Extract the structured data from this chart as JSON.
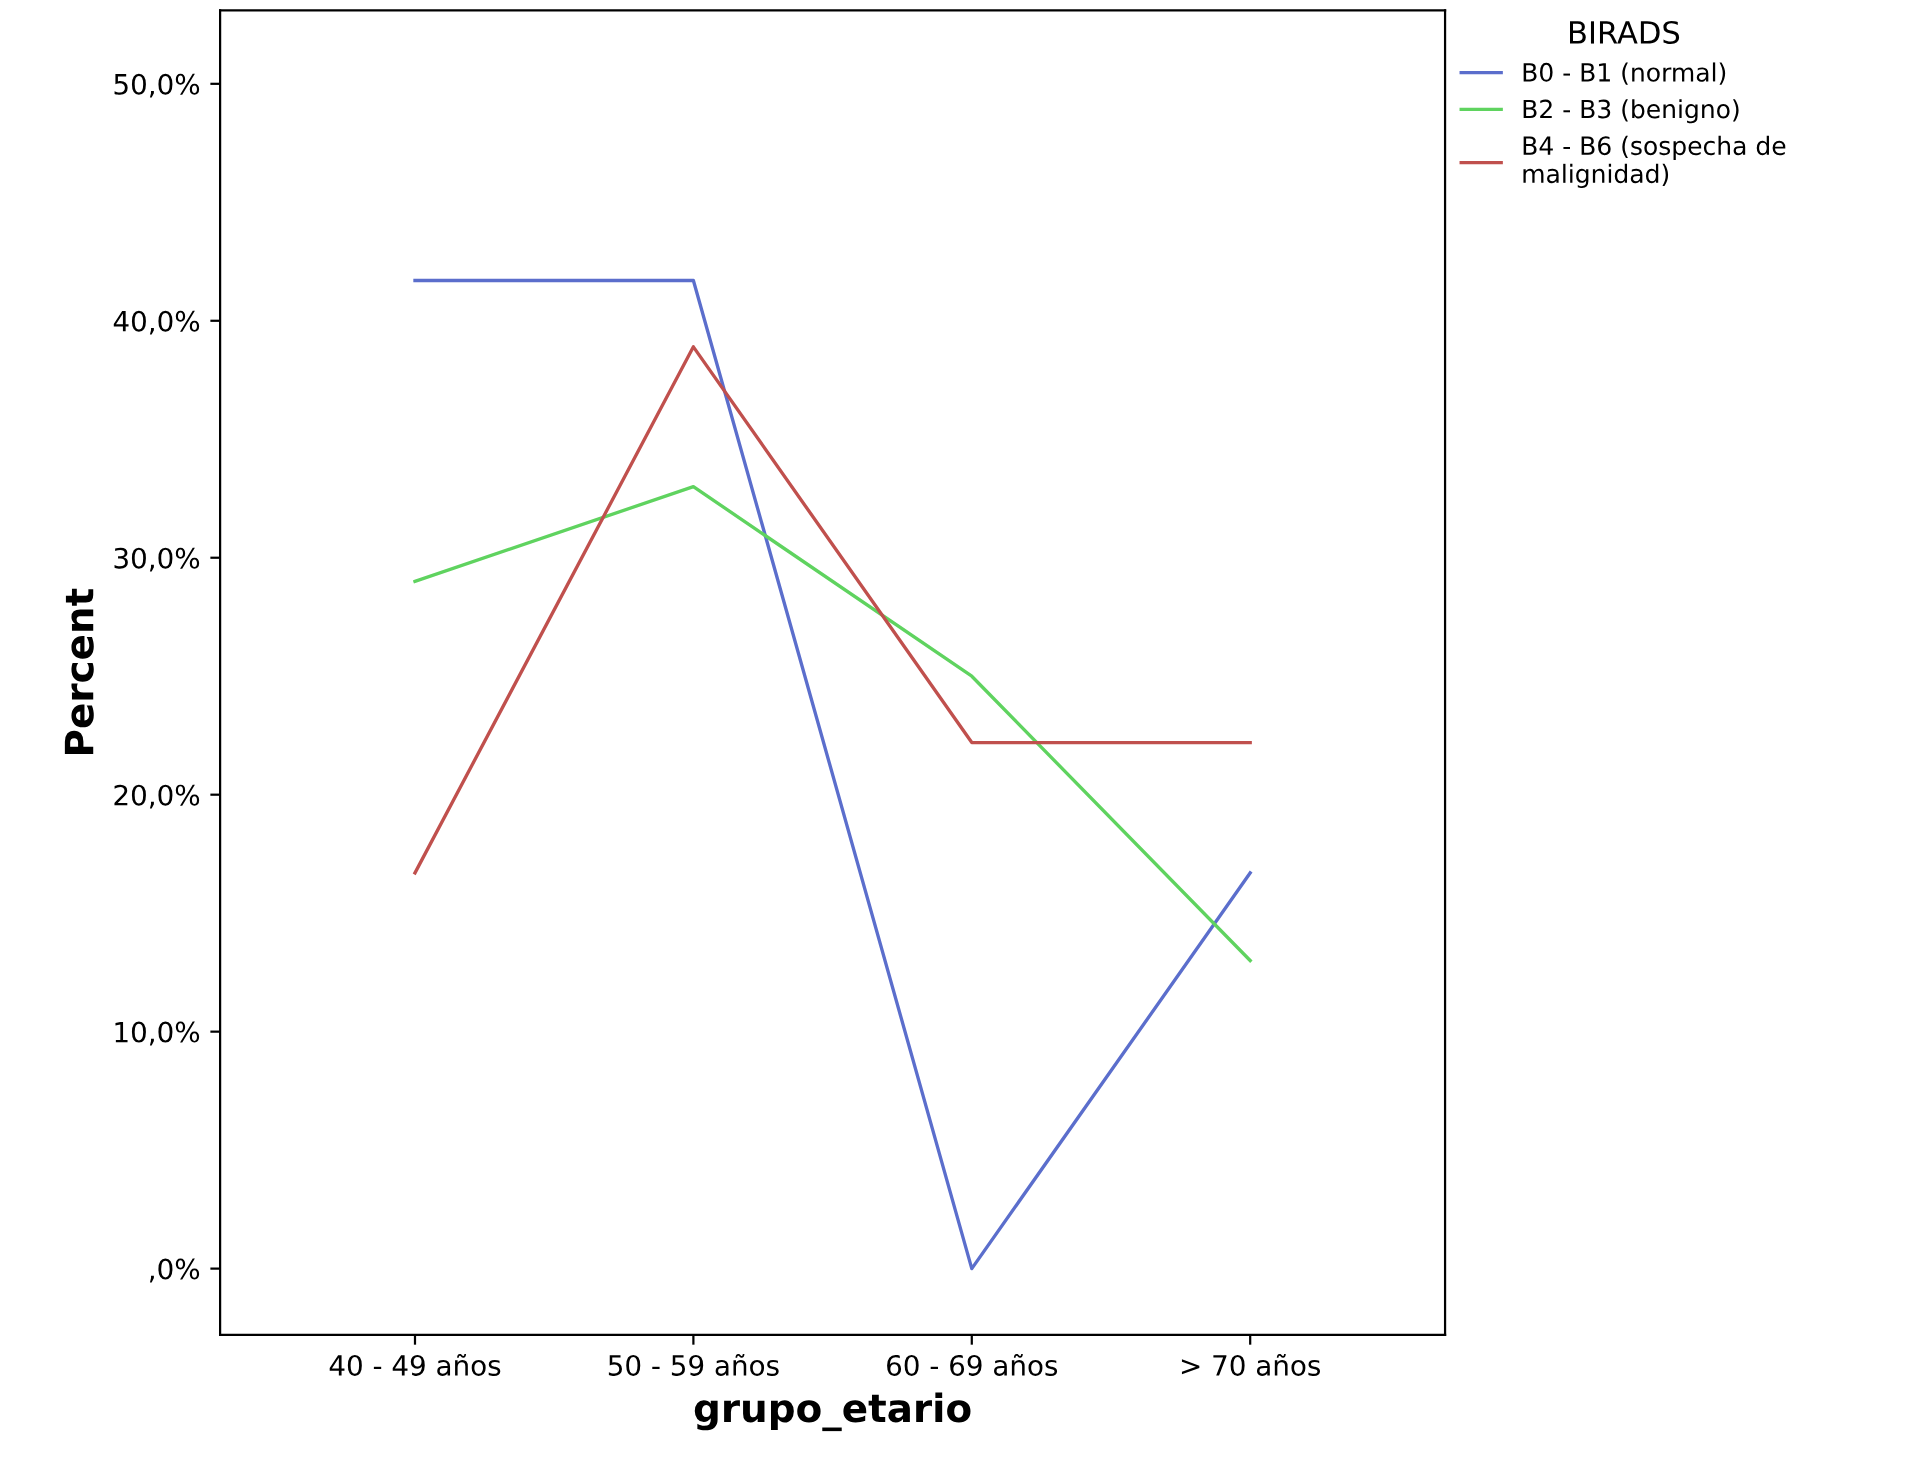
{
  "chart_data": {
    "type": "line",
    "xlabel": "grupo_etario",
    "ylabel": "Percent",
    "legend_title": "BIRADS",
    "legend": "top right",
    "categories": [
      "40 - 49 años",
      "50 - 59 años",
      "60 - 69 años",
      "> 70 años"
    ],
    "series": [
      {
        "name": "B0 - B1 (normal)",
        "color": "#5b6ecc",
        "values": [
          41.7,
          41.7,
          0,
          16.7
        ]
      },
      {
        "name": "B2 - B3 (benigno)",
        "color": "#5fd35f",
        "values": [
          29.0,
          33.0,
          25.0,
          13.0
        ]
      },
      {
        "name": "B4 - B6 (sospecha de malignidad)",
        "color": "#c0504d",
        "values": [
          16.7,
          38.9,
          22.2,
          22.2
        ]
      }
    ],
    "ylim": [
      -2.8,
      53.1
    ],
    "yticks": [
      {
        "value": 0,
        "label": ",0%"
      },
      {
        "value": 10,
        "label": "10,0%"
      },
      {
        "value": 20,
        "label": "20,0%"
      },
      {
        "value": 30,
        "label": "30,0%"
      },
      {
        "value": 40,
        "label": "40,0%"
      },
      {
        "value": 50,
        "label": "50,0%"
      }
    ],
    "grid": false,
    "marker": "none",
    "line_style": "solid"
  }
}
